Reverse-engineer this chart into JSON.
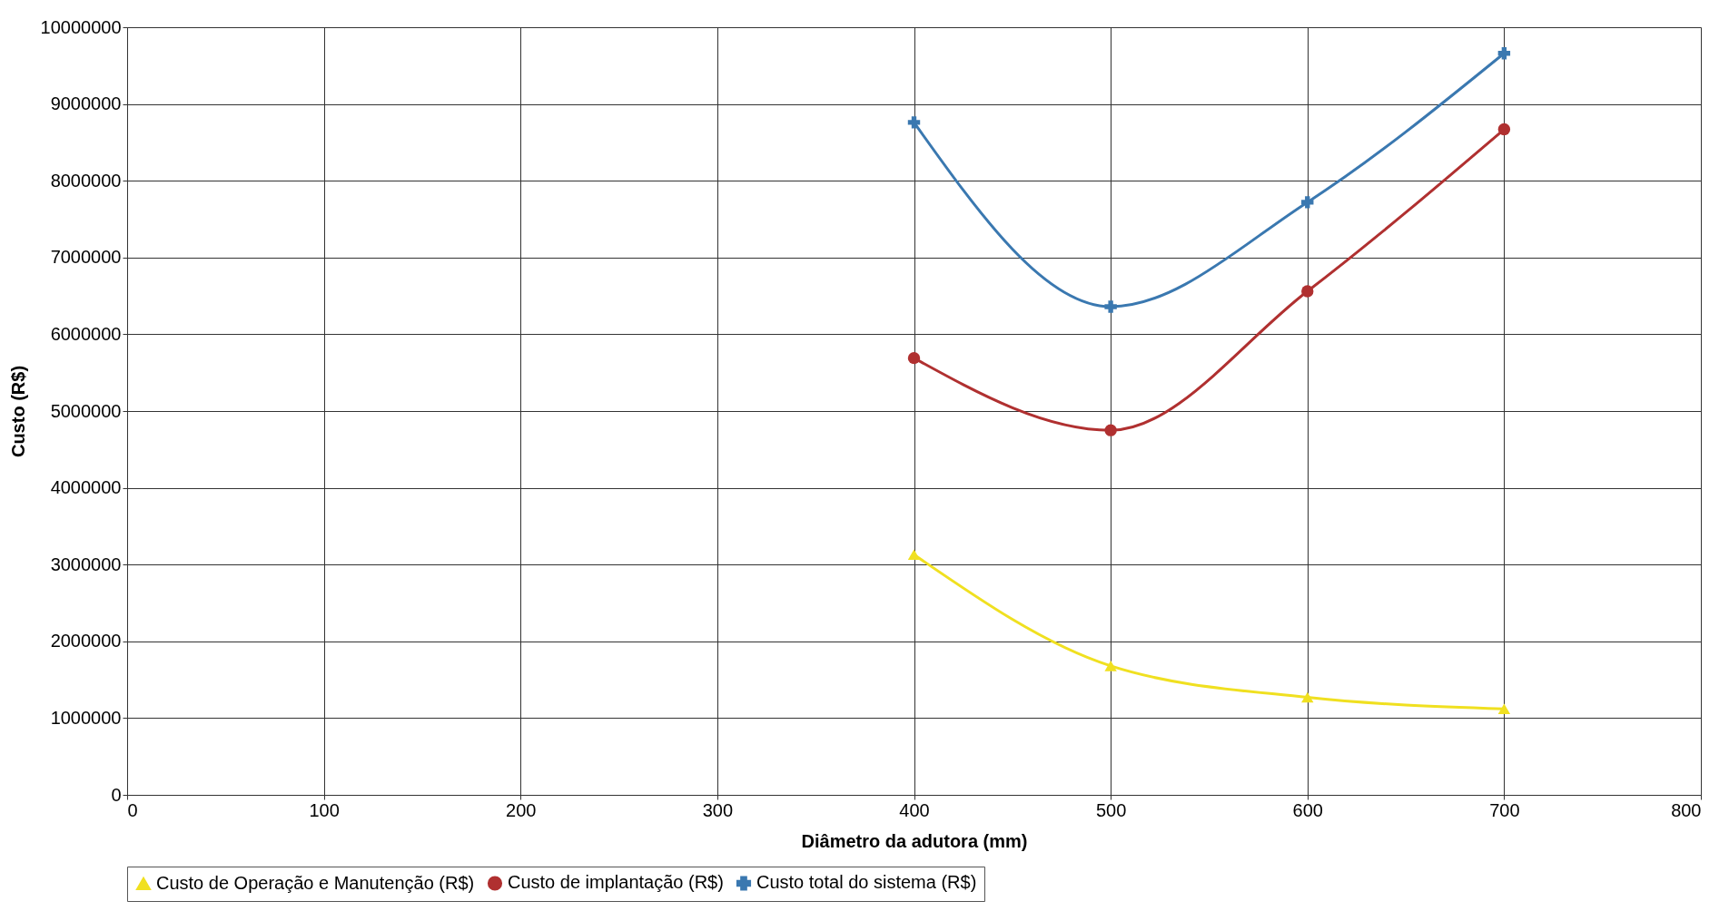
{
  "chart_data": {
    "type": "line",
    "xlabel": "Diâmetro da adutora (mm)",
    "ylabel": "Custo (R$)",
    "x": [
      400,
      500,
      600,
      700
    ],
    "series": [
      {
        "name": "Custo de Operação e Manutenção (R$)",
        "color": "#f0e020",
        "marker": "triangle",
        "values": [
          3130000,
          1680000,
          1270000,
          1120000
        ]
      },
      {
        "name": "Custo de implantação (R$)",
        "color": "#b03030",
        "marker": "circle",
        "values": [
          5690000,
          4750000,
          6560000,
          8670000
        ]
      },
      {
        "name": "Custo total do sistema (R$)",
        "color": "#3a78b0",
        "marker": "cross",
        "values": [
          8760000,
          6360000,
          7720000,
          9660000
        ]
      }
    ],
    "xlim": [
      0,
      800
    ],
    "xticks": [
      0,
      100,
      200,
      300,
      400,
      500,
      600,
      700,
      800
    ],
    "ylim": [
      0,
      10000000
    ],
    "yticks": [
      0,
      1000000,
      2000000,
      3000000,
      4000000,
      5000000,
      6000000,
      7000000,
      8000000,
      9000000,
      10000000
    ],
    "grid": true,
    "legend": "bottom",
    "line_style": "solid"
  }
}
